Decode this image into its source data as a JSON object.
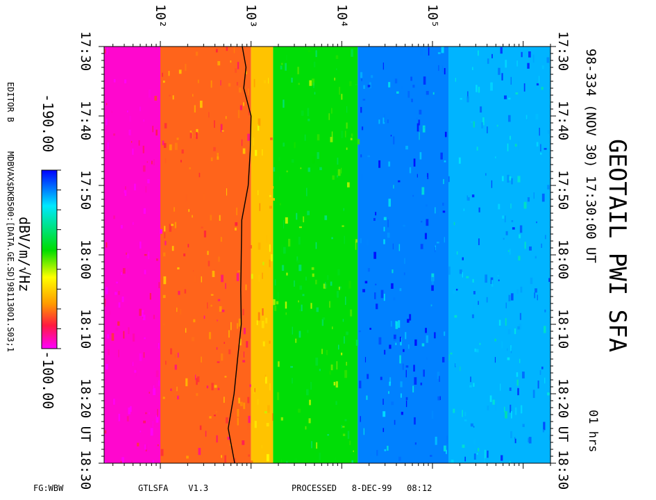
{
  "chart_data": {
    "type": "heatmap",
    "title": "GEOTAIL PWI SFA",
    "subtitle": "98-334 (NOV 30) 17:30:00 UT",
    "duration": "01 hrs",
    "xlabel": "",
    "x_scale": "log",
    "x_ticks": [
      {
        "value": 100,
        "label": "10²"
      },
      {
        "value": 1000,
        "label": "10³"
      },
      {
        "value": 10000,
        "label": "10⁴"
      },
      {
        "value": 100000,
        "label": "10⁵"
      }
    ],
    "xlim": [
      24,
      2000000
    ],
    "y_ticks": [
      "17:30",
      "17:40",
      "17:50",
      "18:00",
      "18:10",
      "18:20 UT 18:30"
    ],
    "y_ticks_right": [
      "17:30",
      "17:40",
      "17:50",
      "18:00",
      "18:10",
      "18:20 UT 18:30"
    ],
    "colorbar": {
      "label": "dBV/m/√Hz",
      "min_label": "-190.00",
      "max_label": "-100.00",
      "range": [
        -190,
        -100
      ]
    },
    "band_boundaries_hz": [
      1750,
      15000,
      150000
    ],
    "band_intensities": [
      {
        "band": "below 10²",
        "level_db": -103
      },
      {
        "band": "10² to 10³",
        "level_db": -118
      },
      {
        "band": "10³ to 1750",
        "level_db": -128
      },
      {
        "band": "1750 to 15000",
        "level_db": -150
      },
      {
        "band": "15000 to 150000",
        "level_db": -180
      },
      {
        "band": "150000 and above",
        "level_db": -176
      }
    ],
    "overlay_line": {
      "name": "",
      "times": [
        "17:30",
        "17:33",
        "17:36",
        "17:40",
        "17:45",
        "17:50",
        "17:55",
        "18:00",
        "18:05",
        "18:10",
        "18:15",
        "18:20",
        "18:25",
        "18:30"
      ],
      "frequency_hz": [
        800,
        880,
        830,
        1000,
        980,
        930,
        790,
        780,
        770,
        780,
        710,
        650,
        560,
        660
      ]
    },
    "grid": false
  },
  "footer": {
    "left": "FG:WBW",
    "program": "GTLSFA    V1.3",
    "processed": "PROCESSED   8-DEC-99   08:12"
  },
  "side_text": {
    "editor": "EDITOR B",
    "data_path": "MDBVAX$DKB500:[DATA.GE.SD]981130O1.S03;1"
  },
  "colors": {
    "magenta": "#ff00ff",
    "red": "#ff1a40",
    "yellow": "#ffff00",
    "green": "#22dd22",
    "cyan": "#00e8ff",
    "blue": "#0000ff",
    "line": "#000000"
  }
}
